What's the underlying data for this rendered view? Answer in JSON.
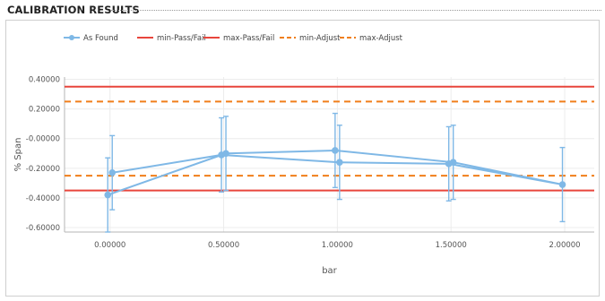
{
  "header": {
    "title": "CALIBRATION RESULTS"
  },
  "chart_data": {
    "type": "line",
    "xlabel": "bar",
    "ylabel": "% Span",
    "xlim": [
      -0.2,
      2.13
    ],
    "ylim": [
      -0.63,
      0.415
    ],
    "x_ticks": [
      0,
      0.5,
      1,
      1.5,
      2
    ],
    "x_tick_labels": [
      "0.00000",
      "0.50000",
      "1.00000",
      "1.50000",
      "2.00000"
    ],
    "y_ticks": [
      0.4,
      0.2,
      0,
      -0.2,
      -0.4,
      -0.6
    ],
    "y_tick_labels": [
      "0.40000",
      "0.20000",
      "-0.00000",
      "-0.20000",
      "-0.40000",
      "-0.60000"
    ],
    "grid": true,
    "legend_position": "top-left",
    "series": [
      {
        "name": "As Found",
        "kind": "line-markers-errorbars",
        "color": "#7fb8e6",
        "x": [
          0.0,
          0.5,
          1.0,
          1.5,
          2.0,
          1.5,
          1.0,
          0.5,
          0.0
        ],
        "y": [
          -0.38,
          -0.1,
          -0.08,
          -0.16,
          -0.31,
          -0.17,
          -0.16,
          -0.11,
          -0.23
        ],
        "error": [
          0.25,
          0.25,
          0.25,
          0.25,
          0.25,
          0.25,
          0.25,
          0.25,
          0.25
        ]
      },
      {
        "name": "min-Pass/Fail",
        "kind": "hline",
        "y": -0.35,
        "color": "#e8453c",
        "dash": "solid"
      },
      {
        "name": "max-Pass/Fail",
        "kind": "hline",
        "y": 0.35,
        "color": "#e8453c",
        "dash": "solid"
      },
      {
        "name": "min-Adjust",
        "kind": "hline",
        "y": -0.25,
        "color": "#f07e1a",
        "dash": "dashed"
      },
      {
        "name": "max-Adjust",
        "kind": "hline",
        "y": 0.25,
        "color": "#f07e1a",
        "dash": "dashed"
      }
    ]
  }
}
